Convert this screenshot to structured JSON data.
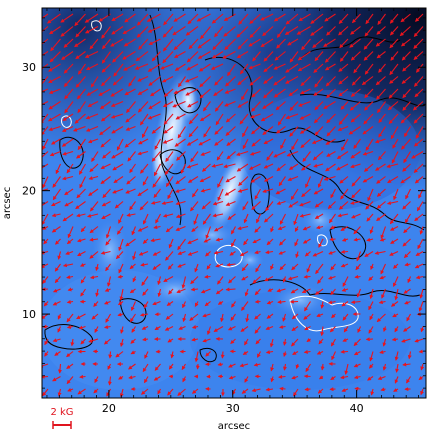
{
  "chart_data": {
    "type": "scatter",
    "title": "",
    "xlabel": "arcsec",
    "ylabel": "arcsec",
    "xlim": [
      14.6,
      45.6
    ],
    "ylim": [
      3.2,
      34.8
    ],
    "x_ticks": [
      20,
      30,
      40
    ],
    "y_ticks": [
      10,
      20,
      30
    ],
    "background": "intensity image (blue colour table)",
    "overlays": {
      "contours": [
        "black",
        "white"
      ],
      "vector_field": {
        "color": "#e8141e",
        "description": "horizontal magnetic field vectors",
        "scale_bar_label": "2 kG",
        "scale_bar_value_kG": 2
      }
    },
    "grid": false,
    "colors": {
      "arrows": "#e8141e",
      "scale_bar": "#e0141e",
      "image_bright": "#e6f2ff",
      "image_mid": "#3f86f0",
      "image_dark": "#0a1436"
    }
  }
}
